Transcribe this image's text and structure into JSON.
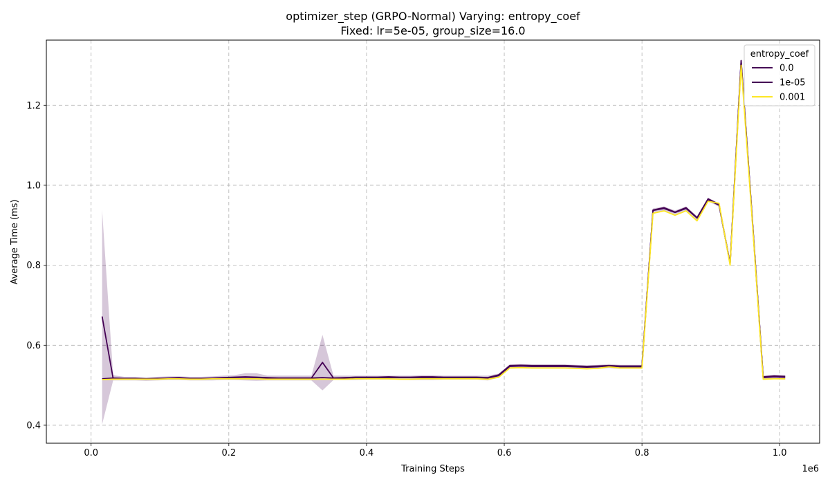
{
  "chart_data": {
    "type": "line",
    "title_line1": "optimizer_step (GRPO-Normal) Varying: entropy_coef",
    "title_line2": "Fixed: lr=5e-05, group_size=16.0",
    "xlabel": "Training Steps",
    "ylabel": "Average Time (ms)",
    "x_offset_label": "1e6",
    "xlim": [
      -0.065,
      1.058
    ],
    "ylim": [
      0.355,
      1.363
    ],
    "xticks": [
      0.0,
      0.2,
      0.4,
      0.6,
      0.8,
      1.0
    ],
    "xtick_labels": [
      "0.0",
      "0.2",
      "0.4",
      "0.6",
      "0.8",
      "1.0"
    ],
    "yticks": [
      0.4,
      0.6,
      0.8,
      1.0,
      1.2
    ],
    "ytick_labels": [
      "0.4",
      "0.6",
      "0.8",
      "1.0",
      "1.2"
    ],
    "grid": true,
    "legend": {
      "title": "entropy_coef",
      "placement": "top-right"
    },
    "x": [
      0.016,
      0.032,
      0.048,
      0.064,
      0.08,
      0.096,
      0.112,
      0.128,
      0.144,
      0.16,
      0.176,
      0.192,
      0.208,
      0.224,
      0.24,
      0.256,
      0.272,
      0.288,
      0.304,
      0.32,
      0.336,
      0.352,
      0.368,
      0.384,
      0.4,
      0.416,
      0.432,
      0.448,
      0.464,
      0.48,
      0.496,
      0.512,
      0.528,
      0.544,
      0.56,
      0.576,
      0.592,
      0.608,
      0.624,
      0.64,
      0.656,
      0.672,
      0.688,
      0.704,
      0.72,
      0.736,
      0.752,
      0.768,
      0.784,
      0.8,
      0.816,
      0.832,
      0.848,
      0.864,
      0.88,
      0.896,
      0.912,
      0.928,
      0.944,
      0.96,
      0.976,
      0.992,
      1.008
    ],
    "series": [
      {
        "name": "0.0",
        "color": "#440154",
        "values": [
          0.672,
          0.517,
          0.516,
          0.516,
          0.515,
          0.516,
          0.517,
          0.517,
          0.516,
          0.516,
          0.517,
          0.518,
          0.519,
          0.52,
          0.519,
          0.518,
          0.518,
          0.518,
          0.518,
          0.518,
          0.557,
          0.518,
          0.518,
          0.518,
          0.519,
          0.519,
          0.519,
          0.519,
          0.519,
          0.519,
          0.519,
          0.519,
          0.519,
          0.519,
          0.519,
          0.518,
          0.524,
          0.547,
          0.548,
          0.547,
          0.547,
          0.547,
          0.547,
          0.546,
          0.545,
          0.546,
          0.548,
          0.546,
          0.546,
          0.546,
          0.937,
          0.942,
          0.932,
          0.942,
          0.918,
          0.964,
          0.95,
          0.803,
          1.31,
          0.92,
          0.519,
          0.521,
          0.52
        ],
        "band_low": [
          0.402,
          0.512,
          0.512,
          0.512,
          0.511,
          0.512,
          0.513,
          0.513,
          0.512,
          0.512,
          0.512,
          0.513,
          0.513,
          0.512,
          0.511,
          0.512,
          0.512,
          0.512,
          0.512,
          0.512,
          0.487,
          0.513,
          0.513,
          0.513,
          0.514,
          0.514,
          0.514,
          0.514,
          0.513,
          0.513,
          0.513,
          0.514,
          0.514,
          0.514,
          0.514,
          0.512,
          0.519,
          0.542,
          0.543,
          0.542,
          0.542,
          0.542,
          0.542,
          0.541,
          0.54,
          0.541,
          0.543,
          0.541,
          0.541,
          0.541,
          0.932,
          0.937,
          0.927,
          0.937,
          0.912,
          0.96,
          0.946,
          0.8,
          1.305,
          0.915,
          0.514,
          0.515,
          0.514
        ],
        "band_high": [
          0.938,
          0.525,
          0.521,
          0.521,
          0.52,
          0.521,
          0.522,
          0.522,
          0.521,
          0.521,
          0.522,
          0.524,
          0.525,
          0.53,
          0.53,
          0.524,
          0.524,
          0.524,
          0.524,
          0.524,
          0.626,
          0.524,
          0.524,
          0.524,
          0.524,
          0.524,
          0.524,
          0.524,
          0.524,
          0.525,
          0.525,
          0.524,
          0.524,
          0.524,
          0.524,
          0.524,
          0.529,
          0.552,
          0.553,
          0.552,
          0.552,
          0.552,
          0.552,
          0.551,
          0.55,
          0.551,
          0.553,
          0.551,
          0.551,
          0.551,
          0.942,
          0.947,
          0.937,
          0.947,
          0.923,
          0.969,
          0.955,
          0.807,
          1.315,
          0.925,
          0.524,
          0.526,
          0.525
        ]
      },
      {
        "name": "1e-05",
        "color": "#440154",
        "values": [
          0.516,
          0.518,
          0.517,
          0.517,
          0.516,
          0.517,
          0.518,
          0.519,
          0.517,
          0.517,
          0.518,
          0.519,
          0.52,
          0.521,
          0.52,
          0.519,
          0.518,
          0.518,
          0.518,
          0.518,
          0.519,
          0.518,
          0.519,
          0.52,
          0.52,
          0.52,
          0.521,
          0.52,
          0.52,
          0.521,
          0.521,
          0.52,
          0.52,
          0.52,
          0.52,
          0.519,
          0.526,
          0.549,
          0.55,
          0.549,
          0.549,
          0.549,
          0.549,
          0.548,
          0.547,
          0.548,
          0.549,
          0.548,
          0.548,
          0.548,
          0.938,
          0.944,
          0.933,
          0.944,
          0.919,
          0.966,
          0.952,
          0.804,
          1.312,
          0.922,
          0.521,
          0.523,
          0.522
        ]
      },
      {
        "name": "0.001",
        "color": "#fde725",
        "values": [
          0.514,
          0.515,
          0.515,
          0.515,
          0.515,
          0.515,
          0.516,
          0.516,
          0.515,
          0.515,
          0.516,
          0.516,
          0.516,
          0.516,
          0.516,
          0.515,
          0.515,
          0.515,
          0.515,
          0.515,
          0.515,
          0.515,
          0.515,
          0.516,
          0.516,
          0.516,
          0.516,
          0.515,
          0.515,
          0.516,
          0.516,
          0.516,
          0.516,
          0.516,
          0.516,
          0.515,
          0.52,
          0.543,
          0.544,
          0.543,
          0.543,
          0.543,
          0.543,
          0.542,
          0.541,
          0.542,
          0.546,
          0.543,
          0.543,
          0.543,
          0.93,
          0.936,
          0.925,
          0.936,
          0.911,
          0.96,
          0.955,
          0.8,
          1.3,
          0.915,
          0.515,
          0.516,
          0.516
        ]
      }
    ]
  }
}
